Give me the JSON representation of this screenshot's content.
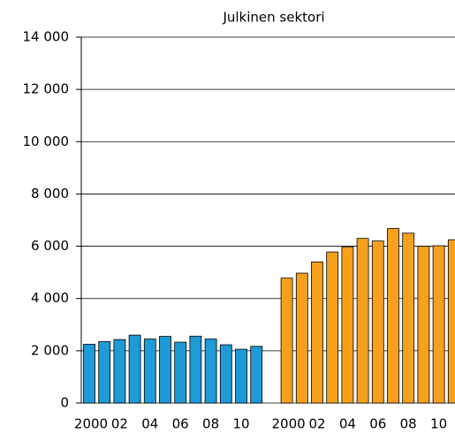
{
  "chart_data": {
    "type": "bar",
    "title": "Julkinen sektori",
    "categories": [
      "2000",
      null,
      "02",
      null,
      "04",
      null,
      "06",
      null,
      "08",
      null,
      "10",
      null,
      null,
      "2000",
      null,
      "02",
      null,
      "04",
      null,
      "06",
      null,
      "08",
      null,
      "10",
      null
    ],
    "series": [
      {
        "color": "#1e9ad6",
        "values": [
          2250,
          2350,
          2430,
          2600,
          2450,
          2550,
          2330,
          2560,
          2450,
          2230,
          2060,
          2170,
          null,
          null,
          null,
          null,
          null,
          null,
          null,
          null,
          null,
          null,
          null,
          null,
          null
        ]
      },
      {
        "color": "#f6a01c",
        "values": [
          null,
          null,
          null,
          null,
          null,
          null,
          null,
          null,
          null,
          null,
          null,
          null,
          null,
          4780,
          4970,
          5400,
          5780,
          5980,
          6300,
          6200,
          6680,
          6500,
          6000,
          6020,
          6250
        ]
      }
    ],
    "ylim": [
      0,
      14000
    ],
    "yticks": [
      0,
      {
        "value": 2000,
        "label": "2 000"
      },
      {
        "value": 4000,
        "label": "4 000"
      },
      {
        "value": 6000,
        "label": "6 000"
      },
      {
        "value": 8000,
        "label": "8 000"
      },
      {
        "value": 10000,
        "label": "10 000"
      },
      {
        "value": 12000,
        "label": "12 000"
      },
      {
        "value": 14000,
        "label": "14 000"
      }
    ],
    "grid": true
  }
}
